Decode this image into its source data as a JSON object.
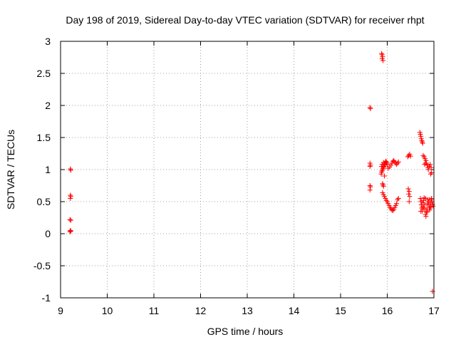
{
  "chart_data": {
    "type": "scatter",
    "title": "Day 198 of 2019, Sidereal Day-to-day VTEC variation (SDTVAR) for receiver rhpt",
    "xlabel": "GPS time / hours",
    "ylabel": "SDTVAR / TECUs",
    "xlim": [
      9,
      17
    ],
    "ylim": [
      -1,
      3
    ],
    "xticks": [
      9,
      10,
      11,
      12,
      13,
      14,
      15,
      16,
      17
    ],
    "yticks": [
      -1,
      -0.5,
      0,
      0.5,
      1,
      1.5,
      2,
      2.5,
      3
    ],
    "xtick_labels": [
      "9",
      "10",
      "11",
      "12",
      "13",
      "14",
      "15",
      "16",
      "17"
    ],
    "ytick_labels": [
      "-1",
      "-0.5",
      "0",
      "0.5",
      "1",
      "1.5",
      "2",
      "2.5",
      "3"
    ],
    "grid": true,
    "marker": "+",
    "marker_color": "#ff0000",
    "series": [
      {
        "name": "SDTVAR",
        "points": [
          [
            9.21,
            1.01
          ],
          [
            9.22,
            0.99
          ],
          [
            9.21,
            0.6
          ],
          [
            9.22,
            0.58
          ],
          [
            9.21,
            0.55
          ],
          [
            9.2,
            0.22
          ],
          [
            9.22,
            0.21
          ],
          [
            9.21,
            0.05
          ],
          [
            9.22,
            0.04
          ],
          [
            9.2,
            0.03
          ],
          [
            15.63,
            1.97
          ],
          [
            15.64,
            1.95
          ],
          [
            15.63,
            1.1
          ],
          [
            15.64,
            1.07
          ],
          [
            15.63,
            1.05
          ],
          [
            15.63,
            0.75
          ],
          [
            15.64,
            0.73
          ],
          [
            15.63,
            0.68
          ],
          [
            15.88,
            2.81
          ],
          [
            15.89,
            2.79
          ],
          [
            15.9,
            2.76
          ],
          [
            15.89,
            2.73
          ],
          [
            15.91,
            2.7
          ],
          [
            15.87,
            0.93
          ],
          [
            15.88,
            0.96
          ],
          [
            15.89,
            0.98
          ],
          [
            15.9,
            1.0
          ],
          [
            15.91,
            1.02
          ],
          [
            15.92,
            1.04
          ],
          [
            15.93,
            1.05
          ],
          [
            15.94,
            1.07
          ],
          [
            15.95,
            1.09
          ],
          [
            15.96,
            1.11
          ],
          [
            15.97,
            1.13
          ],
          [
            15.98,
            1.12
          ],
          [
            15.99,
            1.1
          ],
          [
            16.0,
            1.08
          ],
          [
            15.88,
            1.05
          ],
          [
            15.89,
            1.08
          ],
          [
            15.92,
            1.11
          ],
          [
            15.94,
            0.9
          ],
          [
            15.9,
            0.78
          ],
          [
            15.91,
            0.76
          ],
          [
            15.92,
            0.74
          ],
          [
            15.9,
            0.64
          ],
          [
            15.92,
            0.61
          ],
          [
            15.94,
            0.58
          ],
          [
            15.96,
            0.55
          ],
          [
            15.98,
            0.52
          ],
          [
            16.0,
            0.5
          ],
          [
            16.02,
            0.47
          ],
          [
            16.04,
            0.44
          ],
          [
            16.06,
            0.41
          ],
          [
            16.08,
            0.39
          ],
          [
            16.1,
            0.37
          ],
          [
            16.12,
            0.36
          ],
          [
            16.14,
            0.38
          ],
          [
            16.16,
            0.41
          ],
          [
            16.18,
            0.44
          ],
          [
            16.2,
            0.47
          ],
          [
            16.22,
            0.53
          ],
          [
            16.24,
            0.55
          ],
          [
            16.02,
            1.02
          ],
          [
            16.05,
            1.04
          ],
          [
            16.08,
            1.07
          ],
          [
            16.1,
            1.1
          ],
          [
            16.12,
            1.13
          ],
          [
            16.14,
            1.14
          ],
          [
            16.16,
            1.12
          ],
          [
            16.18,
            1.1
          ],
          [
            16.2,
            1.08
          ],
          [
            16.22,
            1.1
          ],
          [
            16.24,
            1.12
          ],
          [
            16.44,
            1.2
          ],
          [
            16.46,
            1.22
          ],
          [
            16.48,
            1.24
          ],
          [
            16.5,
            1.21
          ],
          [
            16.45,
            0.7
          ],
          [
            16.47,
            0.66
          ],
          [
            16.46,
            0.62
          ],
          [
            16.48,
            0.58
          ],
          [
            16.47,
            0.5
          ],
          [
            16.7,
            1.58
          ],
          [
            16.71,
            1.55
          ],
          [
            16.72,
            1.52
          ],
          [
            16.73,
            1.48
          ],
          [
            16.74,
            1.45
          ],
          [
            16.75,
            1.43
          ],
          [
            16.76,
            1.41
          ],
          [
            16.77,
            1.22
          ],
          [
            16.79,
            1.2
          ],
          [
            16.81,
            1.17
          ],
          [
            16.83,
            1.14
          ],
          [
            16.84,
            1.1
          ],
          [
            16.86,
            1.07
          ],
          [
            16.87,
            1.03
          ],
          [
            16.88,
            1.0
          ],
          [
            16.9,
            1.05
          ],
          [
            16.92,
            1.08
          ],
          [
            16.94,
            1.03
          ],
          [
            16.95,
            0.95
          ],
          [
            16.93,
            0.93
          ],
          [
            16.8,
            1.08
          ],
          [
            16.82,
            1.1
          ],
          [
            16.71,
            0.55
          ],
          [
            16.72,
            0.5
          ],
          [
            16.73,
            0.45
          ],
          [
            16.74,
            0.4
          ],
          [
            16.75,
            0.35
          ],
          [
            16.76,
            0.42
          ],
          [
            16.77,
            0.48
          ],
          [
            16.78,
            0.52
          ],
          [
            16.79,
            0.56
          ],
          [
            16.8,
            0.45
          ],
          [
            16.81,
            0.38
          ],
          [
            16.82,
            0.3
          ],
          [
            16.83,
            0.27
          ],
          [
            16.84,
            0.33
          ],
          [
            16.85,
            0.4
          ],
          [
            16.86,
            0.47
          ],
          [
            16.87,
            0.53
          ],
          [
            16.88,
            0.5
          ],
          [
            16.89,
            0.45
          ],
          [
            16.9,
            0.4
          ],
          [
            16.91,
            0.37
          ],
          [
            16.92,
            0.42
          ],
          [
            16.93,
            0.48
          ],
          [
            16.94,
            0.53
          ],
          [
            16.95,
            0.55
          ],
          [
            16.96,
            0.5
          ],
          [
            16.97,
            0.46
          ],
          [
            16.98,
            0.43
          ],
          [
            16.72,
            0.35
          ],
          [
            16.74,
            0.5
          ],
          [
            16.78,
            0.4
          ],
          [
            16.82,
            0.55
          ],
          [
            16.86,
            0.35
          ],
          [
            16.9,
            0.53
          ],
          [
            16.94,
            0.42
          ],
          [
            16.97,
            -0.9
          ]
        ]
      }
    ]
  }
}
